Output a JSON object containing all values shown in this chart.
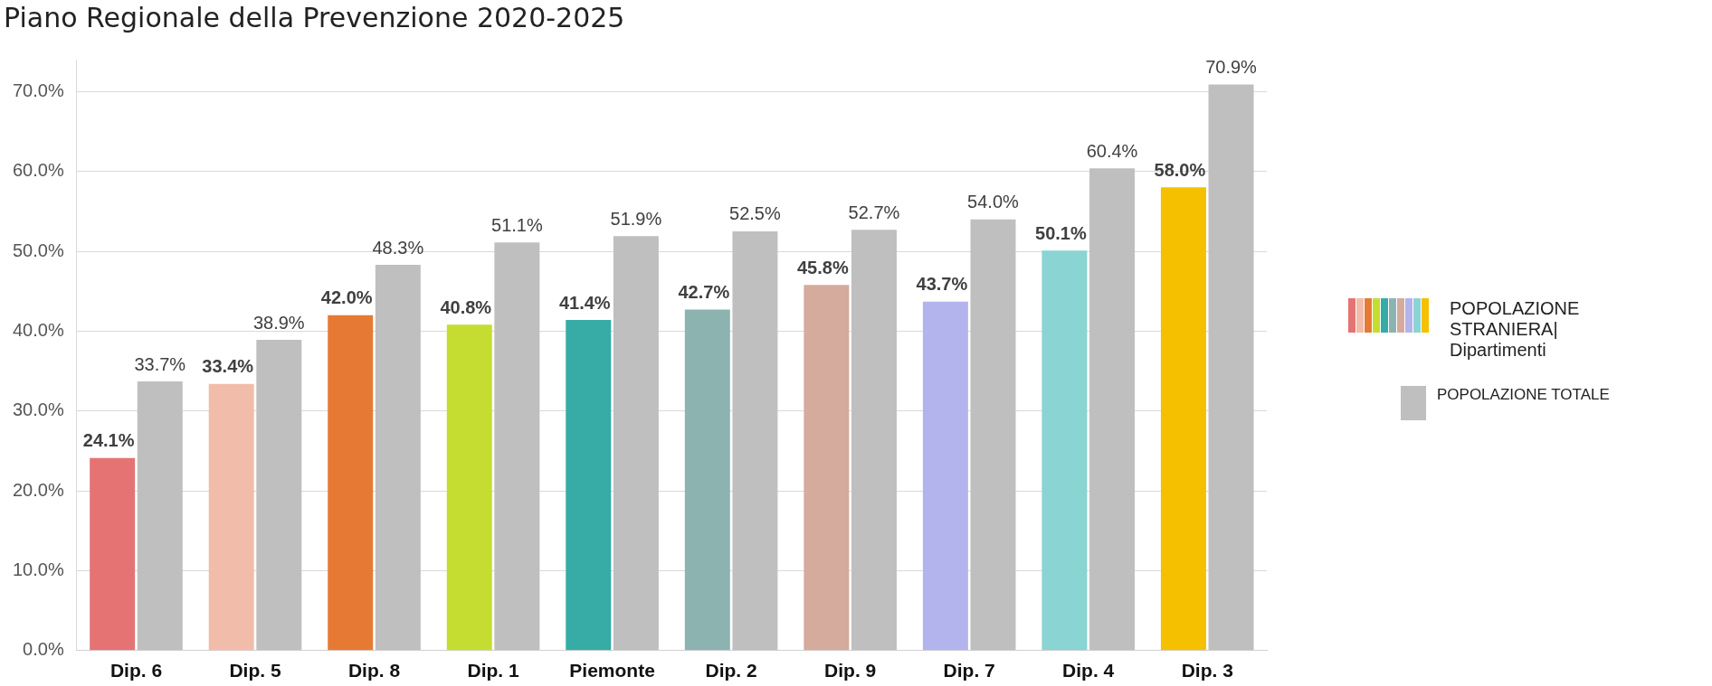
{
  "chart_data": {
    "type": "bar",
    "title": "Piano Regionale della Prevenzione 2020-2025",
    "categories": [
      "Dip. 6",
      "Dip. 5",
      "Dip. 8",
      "Dip. 1",
      "Piemonte",
      "Dip. 2",
      "Dip. 9",
      "Dip. 7",
      "Dip. 4",
      "Dip. 3"
    ],
    "series": [
      {
        "name": "POPOLAZIONE STRANIERA| Dipartimenti",
        "colors": [
          "#e57373",
          "#f2bcaa",
          "#e67a35",
          "#c5dd30",
          "#37aba5",
          "#8db3b0",
          "#d4ab9c",
          "#b3b3ee",
          "#8ad4d3",
          "#f5c000"
        ],
        "values": [
          24.1,
          33.4,
          42.0,
          40.8,
          41.4,
          42.7,
          45.8,
          43.7,
          50.1,
          58.0
        ],
        "value_labels": [
          "24.1%",
          "33.4%",
          "42.0%",
          "40.8%",
          "41.4%",
          "42.7%",
          "45.8%",
          "43.7%",
          "50.1%",
          "58.0%"
        ]
      },
      {
        "name": "POPOLAZIONE TOTALE",
        "color": "#bfbfbf",
        "values": [
          33.7,
          38.9,
          48.3,
          51.1,
          51.9,
          52.5,
          52.7,
          54.0,
          60.4,
          70.9
        ],
        "value_labels": [
          "33.7%",
          "38.9%",
          "48.3%",
          "51.1%",
          "51.9%",
          "52.5%",
          "52.7%",
          "54.0%",
          "60.4%",
          "70.9%"
        ]
      }
    ],
    "ylim": [
      0,
      74
    ],
    "yticks": [
      {
        "value": 0,
        "label": "0.0%"
      },
      {
        "value": 10,
        "label": "10.0%"
      },
      {
        "value": 20,
        "label": "20.0%"
      },
      {
        "value": 30,
        "label": "30.0%"
      },
      {
        "value": 40,
        "label": "40.0%"
      },
      {
        "value": 50,
        "label": "50.0%"
      },
      {
        "value": 60,
        "label": "60.0%"
      },
      {
        "value": 70,
        "label": "70.0%"
      }
    ],
    "grid": "y",
    "legend": "right"
  }
}
